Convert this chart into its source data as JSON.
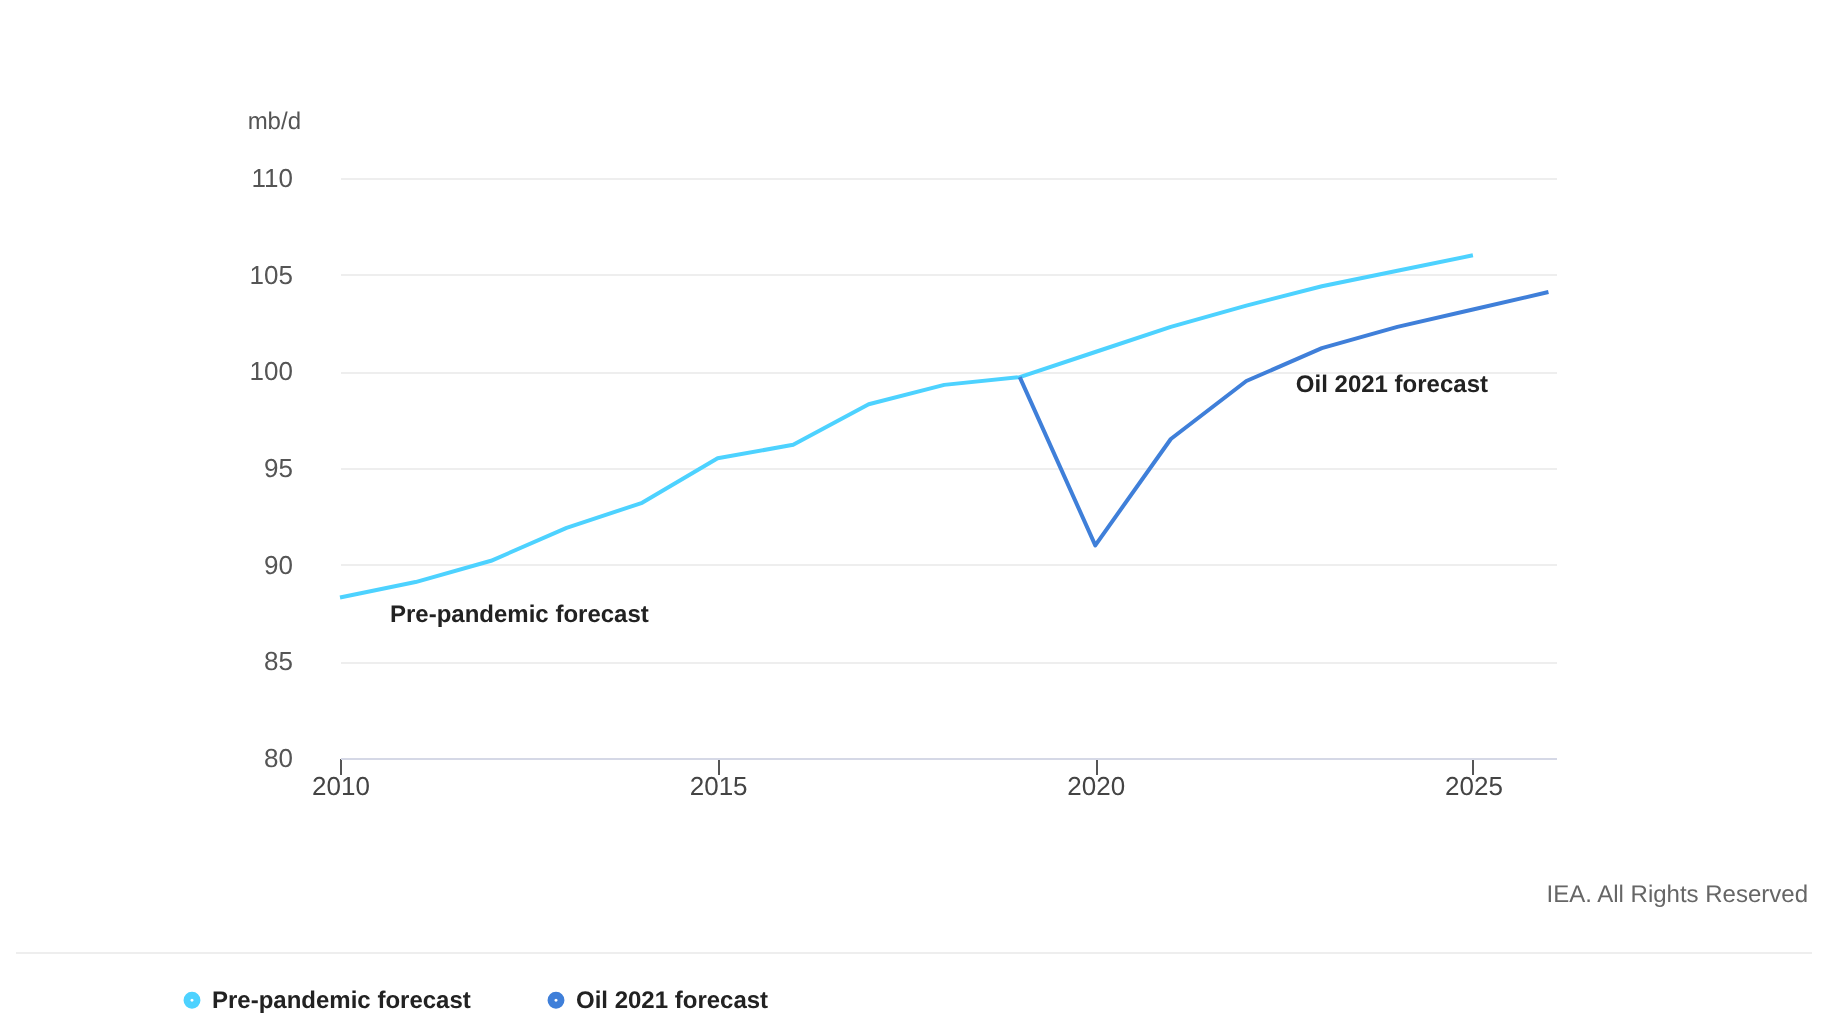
{
  "chart_data": {
    "type": "line",
    "ylabel": "mb/d",
    "x": [
      2010,
      2011,
      2012,
      2013,
      2014,
      2015,
      2016,
      2017,
      2018,
      2019,
      2020,
      2021,
      2022,
      2023,
      2024,
      2025
    ],
    "series": [
      {
        "name": "Pre-pandemic forecast",
        "color": "#4dd2ff",
        "values": [
          88.3,
          89.1,
          90.2,
          91.9,
          93.2,
          95.5,
          96.2,
          98.3,
          99.3,
          99.7,
          101.0,
          102.3,
          103.4,
          104.4,
          105.2,
          106.0
        ]
      },
      {
        "name": "Oil 2021 forecast",
        "color": "#3f7fd9",
        "x": [
          2019,
          2020,
          2021,
          2022,
          2023,
          2024,
          2025,
          2026
        ],
        "values": [
          99.7,
          91.0,
          96.5,
          99.5,
          101.2,
          102.3,
          103.2,
          104.1
        ]
      }
    ],
    "xlim": [
      2010,
      2026.1
    ],
    "xticks": [
      2010,
      2015,
      2020,
      2025
    ],
    "ylim": [
      80,
      110
    ],
    "yticks": [
      80,
      85,
      90,
      95,
      100,
      105,
      110
    ],
    "grid": "y",
    "legend": "bottom",
    "marker": "none",
    "line_style": "solid",
    "annotations": [
      "IEA. All Rights Reserved"
    ]
  }
}
